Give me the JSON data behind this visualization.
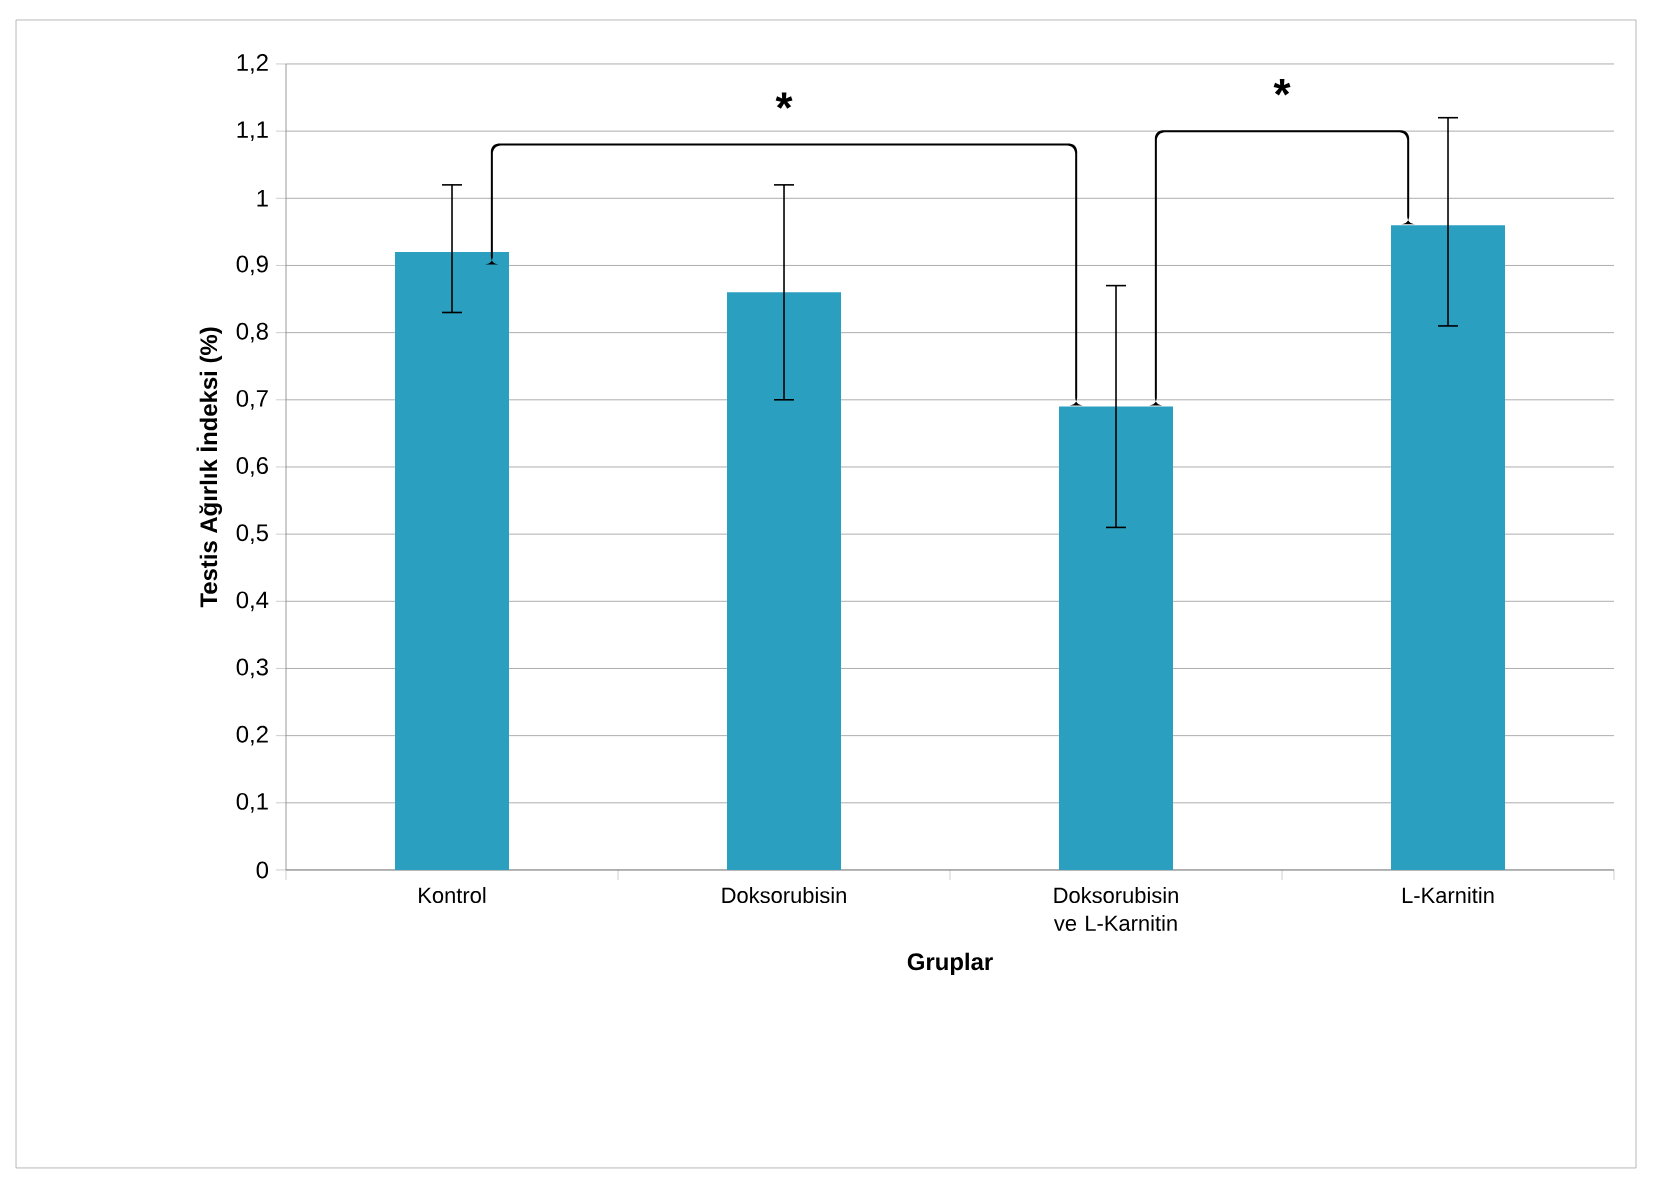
{
  "chart_data": {
    "type": "bar",
    "xlabel": "Gruplar",
    "ylabel": "Testis Ağırlık İndeksi (%)",
    "categories": [
      "Kontrol",
      "Doksorubisin",
      "Doksorubisin ve L-Karnitin",
      "L-Karnitin"
    ],
    "values": [
      0.92,
      0.86,
      0.69,
      0.96
    ],
    "errors": [
      [
        0.83,
        1.02
      ],
      [
        0.7,
        1.02
      ],
      [
        0.51,
        0.87
      ],
      [
        0.81,
        1.12
      ]
    ],
    "color": "#2a9fc0",
    "ylim": [
      0,
      1.2
    ],
    "yticks": [
      0,
      {
        "value": 0.1,
        "label": "0,1"
      },
      {
        "value": 0.2,
        "label": "0,2"
      },
      {
        "value": 0.3,
        "label": "0,3"
      },
      {
        "value": 0.4,
        "label": "0,4"
      },
      {
        "value": 0.5,
        "label": "0,5"
      },
      {
        "value": 0.6,
        "label": "0,6"
      },
      {
        "value": 0.7,
        "label": "0,7"
      },
      {
        "value": 0.8,
        "label": "0,8"
      },
      {
        "value": 0.9,
        "label": "0,9"
      },
      1,
      {
        "value": 1.1,
        "label": "1,1"
      },
      {
        "value": 1.2,
        "label": "1,2"
      }
    ],
    "grid": "y",
    "annotations": [
      "*",
      "*"
    ]
  }
}
